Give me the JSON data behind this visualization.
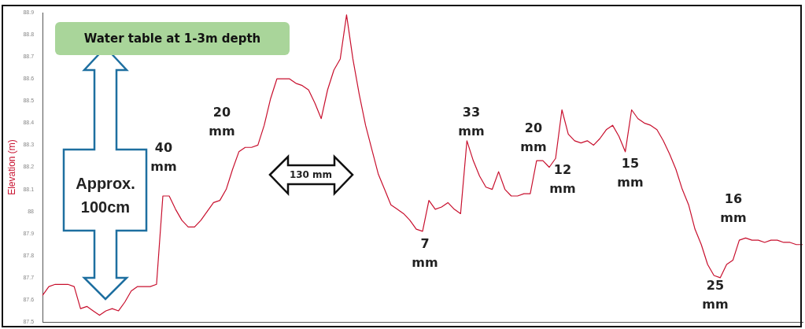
{
  "chart_data": {
    "type": "line",
    "title": "Water table at 1-3m depth",
    "ylabel": "Elevation (m)",
    "categories": [
      null,
      null,
      null,
      null,
      null,
      null,
      null,
      null,
      null,
      null,
      null,
      null,
      null,
      null,
      null,
      null,
      null,
      null,
      null,
      null,
      null,
      null,
      null,
      null,
      null,
      null,
      null,
      null,
      null,
      null,
      null,
      null,
      null,
      null,
      null,
      null,
      null,
      null,
      null,
      null,
      null,
      null,
      null,
      null,
      null,
      null,
      null,
      null,
      null,
      null,
      null,
      null,
      null,
      null,
      null,
      null,
      null,
      null,
      null,
      null,
      null,
      null,
      null,
      null,
      null,
      null,
      null,
      null,
      null,
      null,
      null,
      null,
      null,
      null,
      null,
      null,
      null,
      null,
      null,
      null,
      null,
      null,
      null,
      null,
      null,
      null,
      null,
      null,
      null,
      null,
      null,
      null,
      null,
      null,
      null,
      null,
      null,
      null,
      null,
      null,
      null,
      null,
      null,
      null,
      null,
      null,
      null,
      null,
      null,
      null,
      null,
      null,
      null,
      null,
      null,
      null,
      null,
      null,
      null,
      null,
      null
    ],
    "series": [
      {
        "color": "#c8102e",
        "values": [
          87.62,
          87.66,
          87.67,
          87.67,
          87.67,
          87.66,
          87.56,
          87.57,
          87.55,
          87.53,
          87.55,
          87.56,
          87.55,
          87.59,
          87.64,
          87.66,
          87.66,
          87.66,
          87.67,
          88.07,
          88.07,
          88.01,
          87.96,
          87.93,
          87.93,
          87.96,
          88.0,
          88.04,
          88.05,
          88.1,
          88.19,
          88.27,
          88.29,
          88.29,
          88.3,
          88.39,
          88.51,
          88.6,
          88.6,
          88.6,
          88.58,
          88.57,
          88.55,
          88.49,
          88.42,
          88.55,
          88.64,
          88.69,
          88.89,
          88.69,
          88.53,
          88.39,
          88.28,
          88.17,
          88.1,
          88.03,
          88.01,
          87.99,
          87.96,
          87.92,
          87.91,
          88.05,
          88.01,
          88.02,
          88.04,
          88.01,
          87.99,
          88.32,
          88.23,
          88.16,
          88.11,
          88.1,
          88.18,
          88.1,
          88.07,
          88.07,
          88.08,
          88.08,
          88.23,
          88.23,
          88.2,
          88.24,
          88.46,
          88.35,
          88.32,
          88.31,
          88.32,
          88.3,
          88.33,
          88.37,
          88.39,
          88.34,
          88.27,
          88.46,
          88.42,
          88.4,
          88.39,
          88.37,
          88.32,
          88.26,
          88.19,
          88.1,
          88.03,
          87.92,
          87.85,
          87.76,
          87.71,
          87.7,
          87.76,
          87.78,
          87.87,
          87.88,
          87.87,
          87.87,
          87.86,
          87.87,
          87.87,
          87.86,
          87.86,
          87.85,
          87.85
        ]
      }
    ],
    "ylim": [
      87.5,
      88.9
    ],
    "yticks": [
      87.5,
      87.6,
      87.7,
      87.8,
      87.9,
      88,
      88.1,
      88.2,
      88.3,
      88.4,
      88.5,
      88.6,
      88.7,
      88.8,
      88.9
    ],
    "tick_labels": "y",
    "grid": false,
    "legend": false,
    "marker": "none",
    "line_style": "solid",
    "annotations": [
      "Approx. 100cm",
      "130 mm",
      "40 mm",
      "20 mm",
      "7 mm",
      "33 mm",
      "20 mm",
      "12 mm",
      "15 mm",
      "25 mm",
      "16 mm"
    ]
  }
}
